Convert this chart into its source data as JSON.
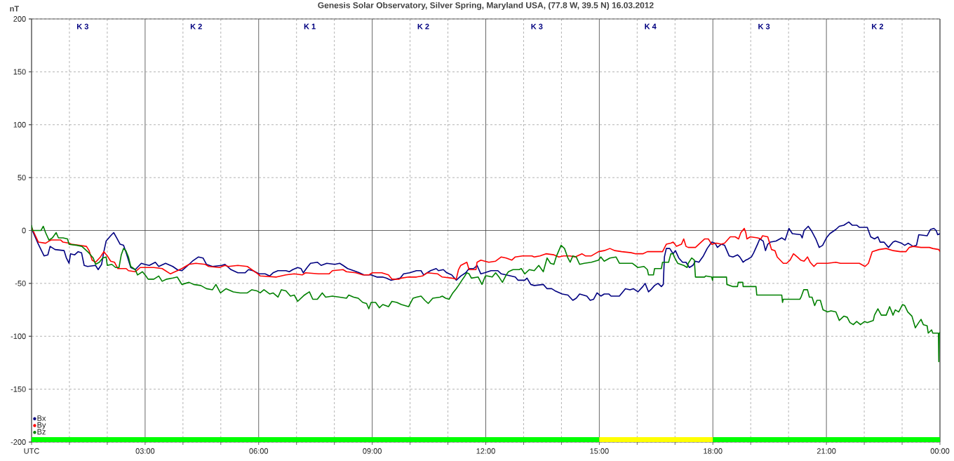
{
  "chart_data": {
    "type": "line",
    "title": "Genesis Solar Observatory, Silver Spring, Maryland USA, (77.8 W, 39.5 N) 16.03.2012",
    "ylabel": "nT",
    "xlim": [
      0,
      24
    ],
    "ylim": [
      -200,
      200
    ],
    "xticks": [
      {
        "value": 0,
        "label": "UTC"
      },
      {
        "value": 1,
        "label": null
      },
      {
        "value": 2,
        "label": null
      },
      {
        "value": 3,
        "label": "03:00"
      },
      {
        "value": 4,
        "label": null
      },
      {
        "value": 5,
        "label": null
      },
      {
        "value": 6,
        "label": "06:00"
      },
      {
        "value": 7,
        "label": null
      },
      {
        "value": 8,
        "label": null
      },
      {
        "value": 9,
        "label": "09:00"
      },
      {
        "value": 10,
        "label": null
      },
      {
        "value": 11,
        "label": null
      },
      {
        "value": 12,
        "label": "12:00"
      },
      {
        "value": 13,
        "label": null
      },
      {
        "value": 14,
        "label": null
      },
      {
        "value": 15,
        "label": "15:00"
      },
      {
        "value": 16,
        "label": null
      },
      {
        "value": 17,
        "label": null
      },
      {
        "value": 18,
        "label": "18:00"
      },
      {
        "value": 19,
        "label": null
      },
      {
        "value": 20,
        "label": null
      },
      {
        "value": 21,
        "label": "21:00"
      },
      {
        "value": 22,
        "label": null
      },
      {
        "value": 23,
        "label": null
      },
      {
        "value": 24,
        "label": "00:00"
      }
    ],
    "yticks": [
      -200,
      -150,
      -100,
      -50,
      0,
      50,
      100,
      150,
      200
    ],
    "grid": true,
    "legend": "bottom left",
    "line_style": "solid",
    "series": [
      {
        "name": "Bx",
        "color": "#000080",
        "x": [
          0,
          0.02,
          0.18,
          0.33,
          0.43,
          0.49,
          0.62,
          0.86,
          0.92,
          0.99,
          1.03,
          1.14,
          1.23,
          1.32,
          1.39,
          1.48,
          1.69,
          1.76,
          1.85,
          1.91,
          1.97,
          2.09,
          2.17,
          2.25,
          2.34,
          2.43,
          2.5,
          2.62,
          2.74,
          2.9,
          2.99,
          3.11,
          3.27,
          3.36,
          3.54,
          3.73,
          3.85,
          3.97,
          4.1,
          4.25,
          4.41,
          4.53,
          4.62,
          4.78,
          5.02,
          5.11,
          5.27,
          5.45,
          5.64,
          5.73,
          5.85,
          6.01,
          6.17,
          6.29,
          6.38,
          6.51,
          6.72,
          6.81,
          6.9,
          7.03,
          7.12,
          7.18,
          7.28,
          7.37,
          7.55,
          7.65,
          7.8,
          8.01,
          8.14,
          8.23,
          8.35,
          8.51,
          8.66,
          8.78,
          8.97,
          9.12,
          9.27,
          9.37,
          9.49,
          9.62,
          9.74,
          9.83,
          9.99,
          10.17,
          10.29,
          10.36,
          10.54,
          10.69,
          10.75,
          10.88,
          10.97,
          11.1,
          11.22,
          11.34,
          11.47,
          11.56,
          11.68,
          11.77,
          11.87,
          11.97,
          12.14,
          12.32,
          12.41,
          12.54,
          12.78,
          12.85,
          13.03,
          13.09,
          13.19,
          13.28,
          13.52,
          13.62,
          13.74,
          13.83,
          14.02,
          14.17,
          14.3,
          14.39,
          14.48,
          14.67,
          14.76,
          14.85,
          14.94,
          15.04,
          15.13,
          15.25,
          15.31,
          15.53,
          15.69,
          15.81,
          15.9,
          16.02,
          16.15,
          16.21,
          16.3,
          16.36,
          16.46,
          16.55,
          16.64,
          16.69,
          16.72,
          16.77,
          16.86,
          16.95,
          17.01,
          17.1,
          17.2,
          17.29,
          17.38,
          17.47,
          17.54,
          17.63,
          17.75,
          17.85,
          17.97,
          18.06,
          18.12,
          18.22,
          18.31,
          18.43,
          18.53,
          18.65,
          18.71,
          18.8,
          18.87,
          18.93,
          19.02,
          19.08,
          19.18,
          19.24,
          19.33,
          19.39,
          19.45,
          19.52,
          19.67,
          19.82,
          19.91,
          20.01,
          20.1,
          20.32,
          20.36,
          20.41,
          20.52,
          20.6,
          20.72,
          20.81,
          20.9,
          21.0,
          21.09,
          21.25,
          21.34,
          21.46,
          21.59,
          21.68,
          21.8,
          21.87,
          22.08,
          22.17,
          22.27,
          22.36,
          22.42,
          22.52,
          22.64,
          22.76,
          22.82,
          22.98,
          23.07,
          23.16,
          23.29,
          23.38,
          23.44,
          23.66,
          23.75,
          23.84,
          23.9,
          23.94,
          24
        ],
        "values": [
          4,
          0,
          -13,
          -24,
          -23,
          -15,
          -18,
          -19,
          -26,
          -31,
          -22,
          -23,
          -20,
          -21,
          -33,
          -34,
          -33,
          -37,
          -32,
          -20,
          -10,
          -5,
          -2,
          -7,
          -13,
          -14,
          -21,
          -35,
          -37,
          -31,
          -32,
          -33,
          -30,
          -34,
          -31,
          -34,
          -37,
          -38,
          -34,
          -29,
          -25,
          -26,
          -32,
          -34,
          -33,
          -32,
          -37,
          -40,
          -40,
          -37,
          -38,
          -41,
          -41,
          -43,
          -40,
          -38,
          -38,
          -39,
          -37,
          -35,
          -36,
          -40,
          -35,
          -31,
          -30,
          -33,
          -31,
          -32,
          -31,
          -33,
          -36,
          -38,
          -40,
          -42,
          -42,
          -44,
          -44,
          -45,
          -47,
          -46,
          -45,
          -41,
          -40,
          -38,
          -38,
          -42,
          -38,
          -36,
          -38,
          -37,
          -40,
          -42,
          -47,
          -43,
          -40,
          -36,
          -36,
          -33,
          -41,
          -40,
          -38,
          -38,
          -41,
          -42,
          -44,
          -47,
          -47,
          -45,
          -51,
          -52,
          -51,
          -55,
          -55,
          -57,
          -60,
          -61,
          -66,
          -64,
          -60,
          -62,
          -66,
          -65,
          -59,
          -62,
          -60,
          -60,
          -62,
          -62,
          -55,
          -56,
          -55,
          -58,
          -53,
          -50,
          -58,
          -56,
          -52,
          -50,
          -53,
          -51,
          -25,
          -17,
          -17,
          -22,
          -19,
          -26,
          -30,
          -30,
          -35,
          -33,
          -29,
          -30,
          -24,
          -17,
          -11,
          -12,
          -16,
          -13,
          -14,
          -24,
          -25,
          -23,
          -25,
          -30,
          -28,
          -27,
          -25,
          -21,
          -13,
          -8,
          -10,
          -19,
          -13,
          -11,
          -10,
          -7,
          -9,
          2,
          -3,
          -4,
          -7,
          0,
          4,
          0,
          -8,
          -16,
          -14,
          -7,
          -3,
          1,
          4,
          5,
          8,
          5,
          5,
          3,
          3,
          -6,
          -8,
          -6,
          -11,
          -11,
          -16,
          -11,
          -10,
          -12,
          -14,
          -12,
          -15,
          -14,
          -4,
          -5,
          1,
          2,
          0,
          -4,
          -3
        ]
      },
      {
        "name": "By",
        "color": "#ff0000",
        "x": [
          0,
          0.09,
          0.18,
          0.37,
          0.46,
          0.52,
          0.77,
          0.83,
          0.99,
          1.05,
          1.26,
          1.45,
          1.52,
          1.6,
          1.69,
          1.82,
          1.91,
          2.0,
          2.09,
          2.19,
          2.28,
          2.5,
          2.56,
          2.74,
          2.87,
          2.99,
          3.23,
          3.45,
          3.67,
          3.79,
          3.97,
          4.16,
          4.34,
          4.59,
          4.68,
          4.96,
          5.11,
          5.2,
          5.45,
          5.7,
          5.98,
          6.04,
          6.47,
          6.72,
          6.94,
          7.15,
          7.24,
          7.58,
          7.86,
          7.95,
          8.23,
          8.32,
          8.57,
          8.75,
          8.91,
          9.0,
          9.25,
          9.43,
          9.52,
          9.71,
          9.77,
          9.96,
          10.17,
          10.33,
          10.45,
          10.73,
          10.85,
          11.1,
          11.22,
          11.28,
          11.34,
          11.5,
          11.56,
          11.74,
          11.77,
          11.87,
          12.08,
          12.26,
          12.41,
          12.54,
          12.69,
          12.78,
          12.97,
          13.22,
          13.28,
          13.43,
          13.59,
          13.8,
          13.93,
          14.05,
          14.23,
          14.36,
          14.54,
          14.63,
          14.79,
          14.98,
          15.13,
          15.28,
          15.41,
          15.59,
          15.84,
          15.96,
          16.15,
          16.27,
          16.52,
          16.67,
          16.77,
          16.89,
          16.95,
          17.04,
          17.17,
          17.23,
          17.29,
          17.35,
          17.54,
          17.66,
          17.78,
          17.88,
          17.97,
          18.1,
          18.22,
          18.31,
          18.46,
          18.59,
          18.68,
          18.74,
          18.83,
          18.87,
          18.9,
          18.99,
          19.18,
          19.27,
          19.31,
          19.45,
          19.5,
          19.55,
          19.64,
          19.7,
          19.86,
          19.95,
          20.04,
          20.13,
          20.23,
          20.32,
          20.41,
          20.5,
          20.57,
          20.67,
          20.75,
          21.03,
          21.25,
          21.37,
          21.59,
          21.87,
          22.02,
          22.11,
          22.21,
          22.39,
          22.58,
          22.76,
          22.95,
          23.1,
          23.19,
          23.29,
          23.5,
          23.72,
          23.81,
          23.97,
          24
        ],
        "values": [
          3,
          -4,
          -11,
          -12,
          -10,
          -9,
          -9,
          -11,
          -12,
          -13,
          -14,
          -15,
          -19,
          -28,
          -30,
          -25,
          -20,
          -24,
          -29,
          -30,
          -36,
          -36,
          -38,
          -39,
          -35,
          -35,
          -35,
          -36,
          -41,
          -39,
          -36,
          -32,
          -31,
          -32,
          -34,
          -35,
          -33,
          -34,
          -33,
          -34,
          -41,
          -43,
          -44,
          -42,
          -41,
          -42,
          -40,
          -41,
          -41,
          -38,
          -37,
          -39,
          -40,
          -42,
          -42,
          -40,
          -40,
          -42,
          -46,
          -46,
          -45,
          -44,
          -44,
          -43,
          -40,
          -41,
          -44,
          -45,
          -46,
          -37,
          -33,
          -30,
          -37,
          -37,
          -30,
          -28,
          -30,
          -29,
          -25,
          -26,
          -28,
          -25,
          -24,
          -24,
          -25,
          -24,
          -22,
          -23,
          -25,
          -24,
          -24,
          -25,
          -22,
          -24,
          -24,
          -20,
          -19,
          -17,
          -19,
          -20,
          -21,
          -22,
          -22,
          -20,
          -20,
          -20,
          -13,
          -12,
          -11,
          -15,
          -13,
          -8,
          -15,
          -16,
          -16,
          -12,
          -8,
          -8,
          -13,
          -12,
          -13,
          -12,
          -6,
          -6,
          -8,
          -2,
          2,
          -2,
          -8,
          -6,
          -7,
          -8,
          -5,
          -6,
          -12,
          -18,
          -19,
          -25,
          -31,
          -31,
          -28,
          -22,
          -25,
          -28,
          -29,
          -25,
          -30,
          -34,
          -31,
          -31,
          -30,
          -31,
          -31,
          -31,
          -34,
          -31,
          -20,
          -18,
          -17,
          -19,
          -20,
          -20,
          -16,
          -15,
          -16,
          -16,
          -17,
          -18,
          -20
        ]
      },
      {
        "name": "Bz",
        "color": "#008000",
        "x": [
          0,
          0.02,
          0.12,
          0.25,
          0.31,
          0.37,
          0.46,
          0.55,
          0.65,
          0.71,
          0.83,
          0.95,
          0.99,
          1.2,
          1.33,
          1.42,
          1.51,
          1.63,
          1.69,
          1.79,
          1.88,
          1.97,
          2.0,
          2.12,
          2.22,
          2.31,
          2.37,
          2.43,
          2.49,
          2.56,
          2.62,
          2.74,
          2.8,
          2.93,
          3.02,
          3.08,
          3.23,
          3.36,
          3.45,
          3.57,
          3.73,
          3.85,
          3.97,
          4.16,
          4.28,
          4.47,
          4.62,
          4.78,
          4.87,
          4.99,
          5.14,
          5.33,
          5.51,
          5.7,
          5.82,
          5.95,
          6.04,
          6.14,
          6.29,
          6.38,
          6.51,
          6.6,
          6.72,
          6.84,
          6.94,
          7.03,
          7.12,
          7.21,
          7.34,
          7.43,
          7.55,
          7.68,
          7.77,
          7.95,
          8.14,
          8.32,
          8.38,
          8.51,
          8.63,
          8.75,
          8.85,
          8.91,
          8.97,
          9.09,
          9.19,
          9.28,
          9.43,
          9.52,
          9.65,
          9.77,
          9.96,
          10.08,
          10.17,
          10.29,
          10.39,
          10.48,
          10.6,
          10.79,
          10.85,
          10.94,
          11.03,
          11.13,
          11.22,
          11.28,
          11.37,
          11.43,
          11.5,
          11.56,
          11.62,
          11.8,
          11.9,
          11.99,
          12.04,
          12.17,
          12.26,
          12.35,
          12.44,
          12.54,
          12.6,
          12.72,
          12.88,
          12.94,
          13.03,
          13.15,
          13.28,
          13.4,
          13.52,
          13.62,
          13.71,
          13.8,
          13.86,
          13.99,
          14.08,
          14.17,
          14.23,
          14.3,
          14.39,
          14.48,
          14.6,
          14.79,
          14.98,
          15.04,
          15.13,
          15.28,
          15.44,
          15.53,
          15.87,
          16.02,
          16.18,
          16.27,
          16.3,
          16.43,
          16.46,
          16.64,
          16.67,
          16.83,
          16.89,
          16.95,
          16.98,
          17.07,
          17.23,
          17.32,
          17.35,
          17.44,
          17.51,
          17.54,
          17.78,
          17.81,
          17.97,
          17.99,
          18,
          18.36,
          18.37,
          18.53,
          18.65,
          18.67,
          18.79,
          18.8,
          19.14,
          19.16,
          19.82,
          19.84,
          19.86,
          20.3,
          20.33,
          20.4,
          20.5,
          20.55,
          20.62,
          20.69,
          20.75,
          20.84,
          20.91,
          21.03,
          21.12,
          21.25,
          21.34,
          21.46,
          21.55,
          21.62,
          21.71,
          21.8,
          21.9,
          22.01,
          22.08,
          22.24,
          22.27,
          22.36,
          22.45,
          22.58,
          22.67,
          22.76,
          22.82,
          22.91,
          23.01,
          23.07,
          23.15,
          23.26,
          23.35,
          23.44,
          23.5,
          23.56,
          23.66,
          23.69,
          23.78,
          23.81,
          23.91,
          23.96,
          23.97,
          23.98,
          24
        ],
        "values": [
          5,
          0,
          0,
          0,
          4,
          -2,
          -9,
          -7,
          -2,
          -7,
          -7,
          -8,
          -13,
          -14,
          -15,
          -18,
          -21,
          -26,
          -32,
          -30,
          -26,
          -25,
          -33,
          -32,
          -35,
          -35,
          -23,
          -17,
          -19,
          -25,
          -34,
          -37,
          -42,
          -39,
          -43,
          -46,
          -46,
          -43,
          -48,
          -46,
          -45,
          -44,
          -51,
          -49,
          -51,
          -52,
          -55,
          -56,
          -51,
          -59,
          -55,
          -58,
          -59,
          -59,
          -56,
          -57,
          -59,
          -56,
          -60,
          -59,
          -63,
          -56,
          -57,
          -62,
          -61,
          -67,
          -64,
          -61,
          -58,
          -65,
          -65,
          -59,
          -63,
          -62,
          -63,
          -64,
          -61,
          -63,
          -64,
          -68,
          -69,
          -74,
          -68,
          -68,
          -73,
          -70,
          -72,
          -67,
          -68,
          -70,
          -72,
          -64,
          -63,
          -62,
          -66,
          -69,
          -64,
          -63,
          -62,
          -64,
          -65,
          -59,
          -55,
          -52,
          -47,
          -44,
          -40,
          -41,
          -45,
          -44,
          -51,
          -43,
          -43,
          -44,
          -40,
          -44,
          -49,
          -42,
          -39,
          -37,
          -37,
          -36,
          -41,
          -37,
          -38,
          -33,
          -39,
          -26,
          -31,
          -32,
          -25,
          -14,
          -17,
          -26,
          -30,
          -24,
          -25,
          -32,
          -31,
          -30,
          -28,
          -25,
          -29,
          -26,
          -25,
          -31,
          -31,
          -35,
          -34,
          -37,
          -42,
          -42,
          -36,
          -36,
          -30,
          -30,
          -22,
          -22,
          -25,
          -31,
          -33,
          -35,
          -31,
          -26,
          -28,
          -44,
          -44,
          -43,
          -44,
          -47,
          -44,
          -44,
          -51,
          -53,
          -53,
          -49,
          -49,
          -53,
          -53,
          -61,
          -61,
          -68,
          -65,
          -65,
          -63,
          -56,
          -56,
          -63,
          -63,
          -71,
          -66,
          -66,
          -75,
          -77,
          -76,
          -77,
          -85,
          -81,
          -82,
          -87,
          -89,
          -86,
          -89,
          -86,
          -87,
          -85,
          -80,
          -74,
          -80,
          -80,
          -72,
          -80,
          -75,
          -77,
          -70,
          -71,
          -77,
          -81,
          -92,
          -87,
          -84,
          -89,
          -90,
          -97,
          -94,
          -97,
          -97,
          -97,
          -124,
          -98,
          -96
        ]
      }
    ],
    "annotations": [
      "K 3",
      "K 2",
      "K 1",
      "K 2",
      "K 3",
      "K 4",
      "K 3",
      "K 2"
    ]
  }
}
